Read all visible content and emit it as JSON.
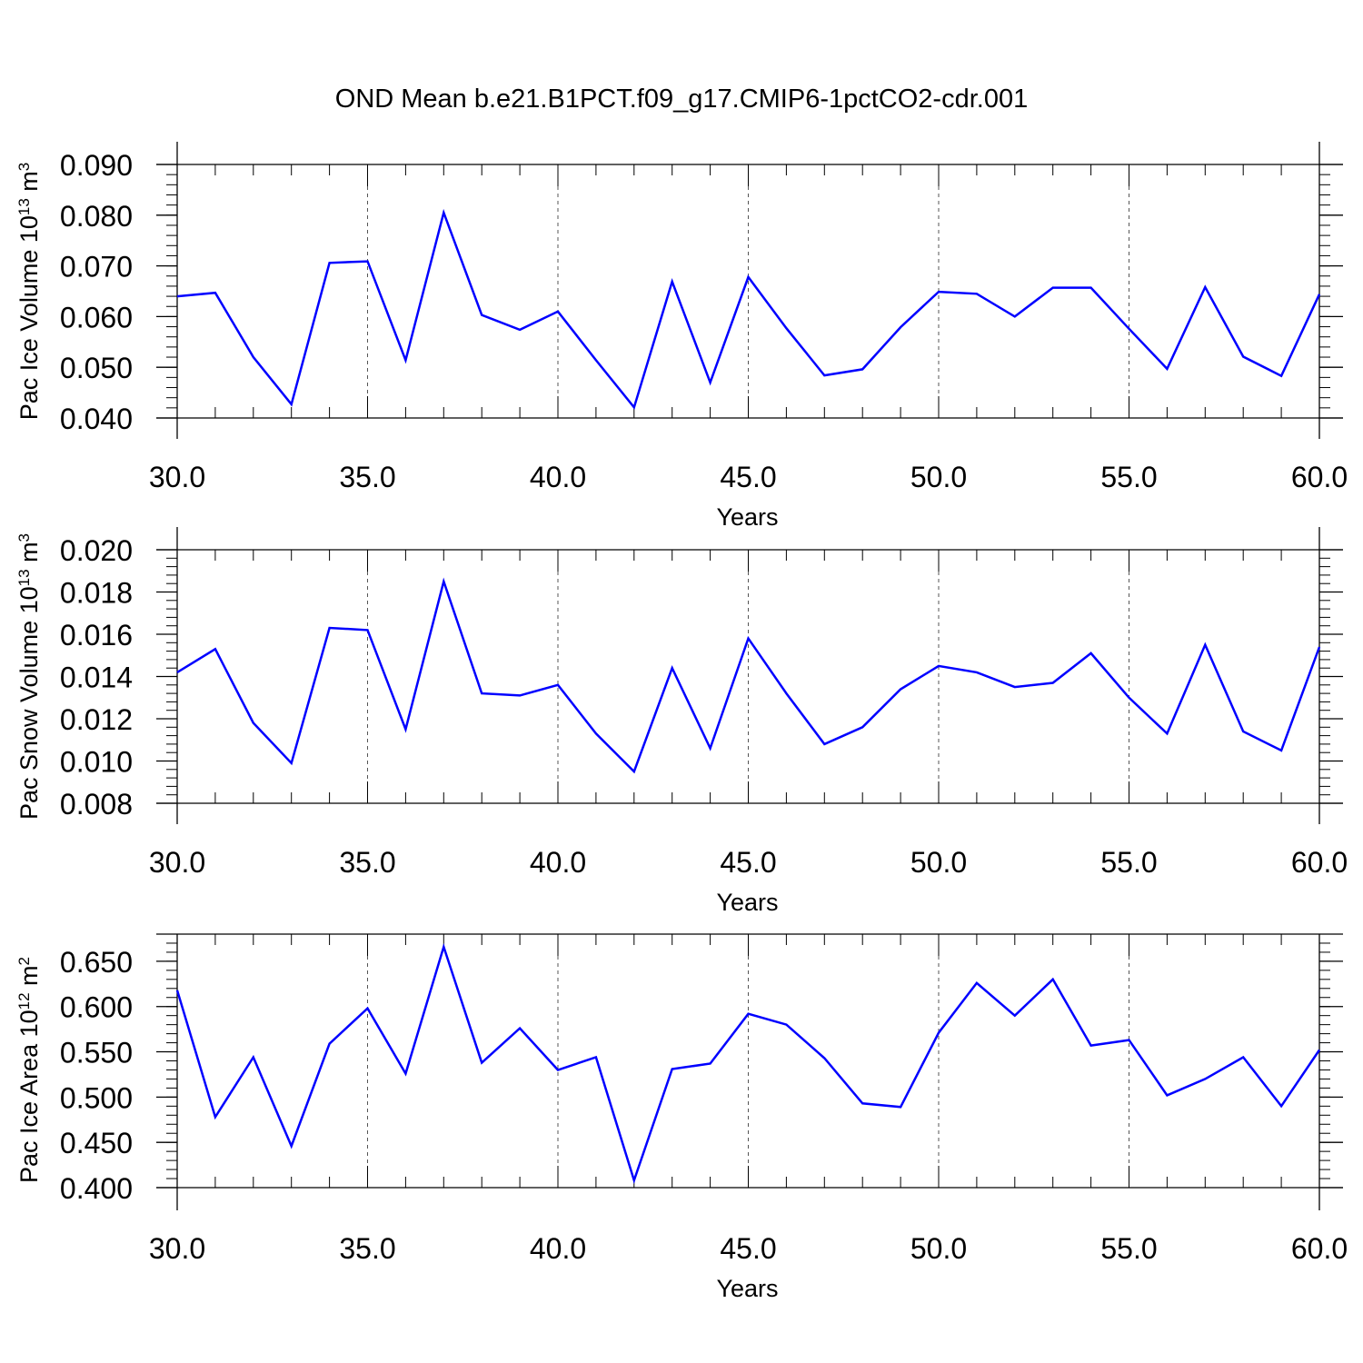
{
  "figure": {
    "title": "OND Mean b.e21.B1PCT.f09_g17.CMIP6-1pctCO2-cdr.001",
    "line_color": "#0000ff"
  },
  "chart_data": [
    {
      "type": "line",
      "ylabel": {
        "text": "Pac Ice Volume 10",
        "exp": "13",
        "unit": " m",
        "unit_exp": "3"
      },
      "xlabel": "Years",
      "xlim": [
        30,
        60
      ],
      "ylim": [
        0.04,
        0.09
      ],
      "x_ticks": [
        30,
        35,
        40,
        45,
        50,
        55,
        60
      ],
      "x_tick_labels": [
        "30.0",
        "35.0",
        "40.0",
        "45.0",
        "50.0",
        "55.0",
        "60.0"
      ],
      "y_ticks": [
        0.04,
        0.05,
        0.06,
        0.07,
        0.08,
        0.09
      ],
      "y_tick_labels": [
        "0.040",
        "0.050",
        "0.060",
        "0.070",
        "0.080",
        "0.090"
      ],
      "grid": "vertical dashed at major x ticks",
      "x": [
        30,
        31,
        32,
        33,
        34,
        35,
        36,
        37,
        38,
        39,
        40,
        41,
        42,
        43,
        44,
        45,
        46,
        47,
        48,
        49,
        50,
        51,
        52,
        53,
        54,
        55,
        56,
        57,
        58,
        59,
        60
      ],
      "values": [
        0.064,
        0.0647,
        0.052,
        0.0427,
        0.0706,
        0.0709,
        0.0514,
        0.0805,
        0.0603,
        0.0574,
        0.061,
        0.0514,
        0.0421,
        0.0669,
        0.047,
        0.0678,
        0.0577,
        0.0484,
        0.0496,
        0.0579,
        0.0649,
        0.0645,
        0.06,
        0.0657,
        0.0657,
        0.0576,
        0.0497,
        0.0658,
        0.0521,
        0.0483,
        0.0644
      ]
    },
    {
      "type": "line",
      "ylabel": {
        "text": "Pac Snow Volume 10",
        "exp": "13",
        "unit": " m",
        "unit_exp": "3"
      },
      "xlabel": "Years",
      "xlim": [
        30,
        60
      ],
      "ylim": [
        0.008,
        0.02
      ],
      "x_ticks": [
        30,
        35,
        40,
        45,
        50,
        55,
        60
      ],
      "x_tick_labels": [
        "30.0",
        "35.0",
        "40.0",
        "45.0",
        "50.0",
        "55.0",
        "60.0"
      ],
      "y_ticks": [
        0.008,
        0.01,
        0.012,
        0.014,
        0.016,
        0.018,
        0.02
      ],
      "y_tick_labels": [
        "0.008",
        "0.010",
        "0.012",
        "0.014",
        "0.016",
        "0.018",
        "0.020"
      ],
      "grid": "vertical dashed at major x ticks",
      "x": [
        30,
        31,
        32,
        33,
        34,
        35,
        36,
        37,
        38,
        39,
        40,
        41,
        42,
        43,
        44,
        45,
        46,
        47,
        48,
        49,
        50,
        51,
        52,
        53,
        54,
        55,
        56,
        57,
        58,
        59,
        60
      ],
      "values": [
        0.0142,
        0.0153,
        0.0118,
        0.0099,
        0.0163,
        0.0162,
        0.0115,
        0.0185,
        0.0132,
        0.0131,
        0.0136,
        0.0113,
        0.0095,
        0.0144,
        0.0106,
        0.0158,
        0.0132,
        0.0108,
        0.0116,
        0.0134,
        0.0145,
        0.0142,
        0.0135,
        0.0137,
        0.0151,
        0.013,
        0.0113,
        0.0155,
        0.0114,
        0.0105,
        0.0154
      ]
    },
    {
      "type": "line",
      "ylabel": {
        "text": "Pac Ice Area 10",
        "exp": "12",
        "unit": " m",
        "unit_exp": "2"
      },
      "xlabel": "Years",
      "xlim": [
        30,
        60
      ],
      "ylim": [
        0.4,
        0.68
      ],
      "x_ticks": [
        30,
        35,
        40,
        45,
        50,
        55,
        60
      ],
      "x_tick_labels": [
        "30.0",
        "35.0",
        "40.0",
        "45.0",
        "50.0",
        "55.0",
        "60.0"
      ],
      "y_ticks": [
        0.4,
        0.45,
        0.5,
        0.55,
        0.6,
        0.65
      ],
      "y_tick_labels": [
        "0.400",
        "0.450",
        "0.500",
        "0.550",
        "0.600",
        "0.650"
      ],
      "grid": "vertical dashed at major x ticks",
      "x": [
        30,
        31,
        32,
        33,
        34,
        35,
        36,
        37,
        38,
        39,
        40,
        41,
        42,
        43,
        44,
        45,
        46,
        47,
        48,
        49,
        50,
        51,
        52,
        53,
        54,
        55,
        56,
        57,
        58,
        59,
        60
      ],
      "values": [
        0.618,
        0.478,
        0.544,
        0.446,
        0.559,
        0.598,
        0.526,
        0.666,
        0.538,
        0.576,
        0.53,
        0.544,
        0.408,
        0.531,
        0.537,
        0.592,
        0.58,
        0.543,
        0.493,
        0.489,
        0.571,
        0.626,
        0.59,
        0.63,
        0.557,
        0.563,
        0.502,
        0.52,
        0.544,
        0.49,
        0.552
      ]
    }
  ]
}
